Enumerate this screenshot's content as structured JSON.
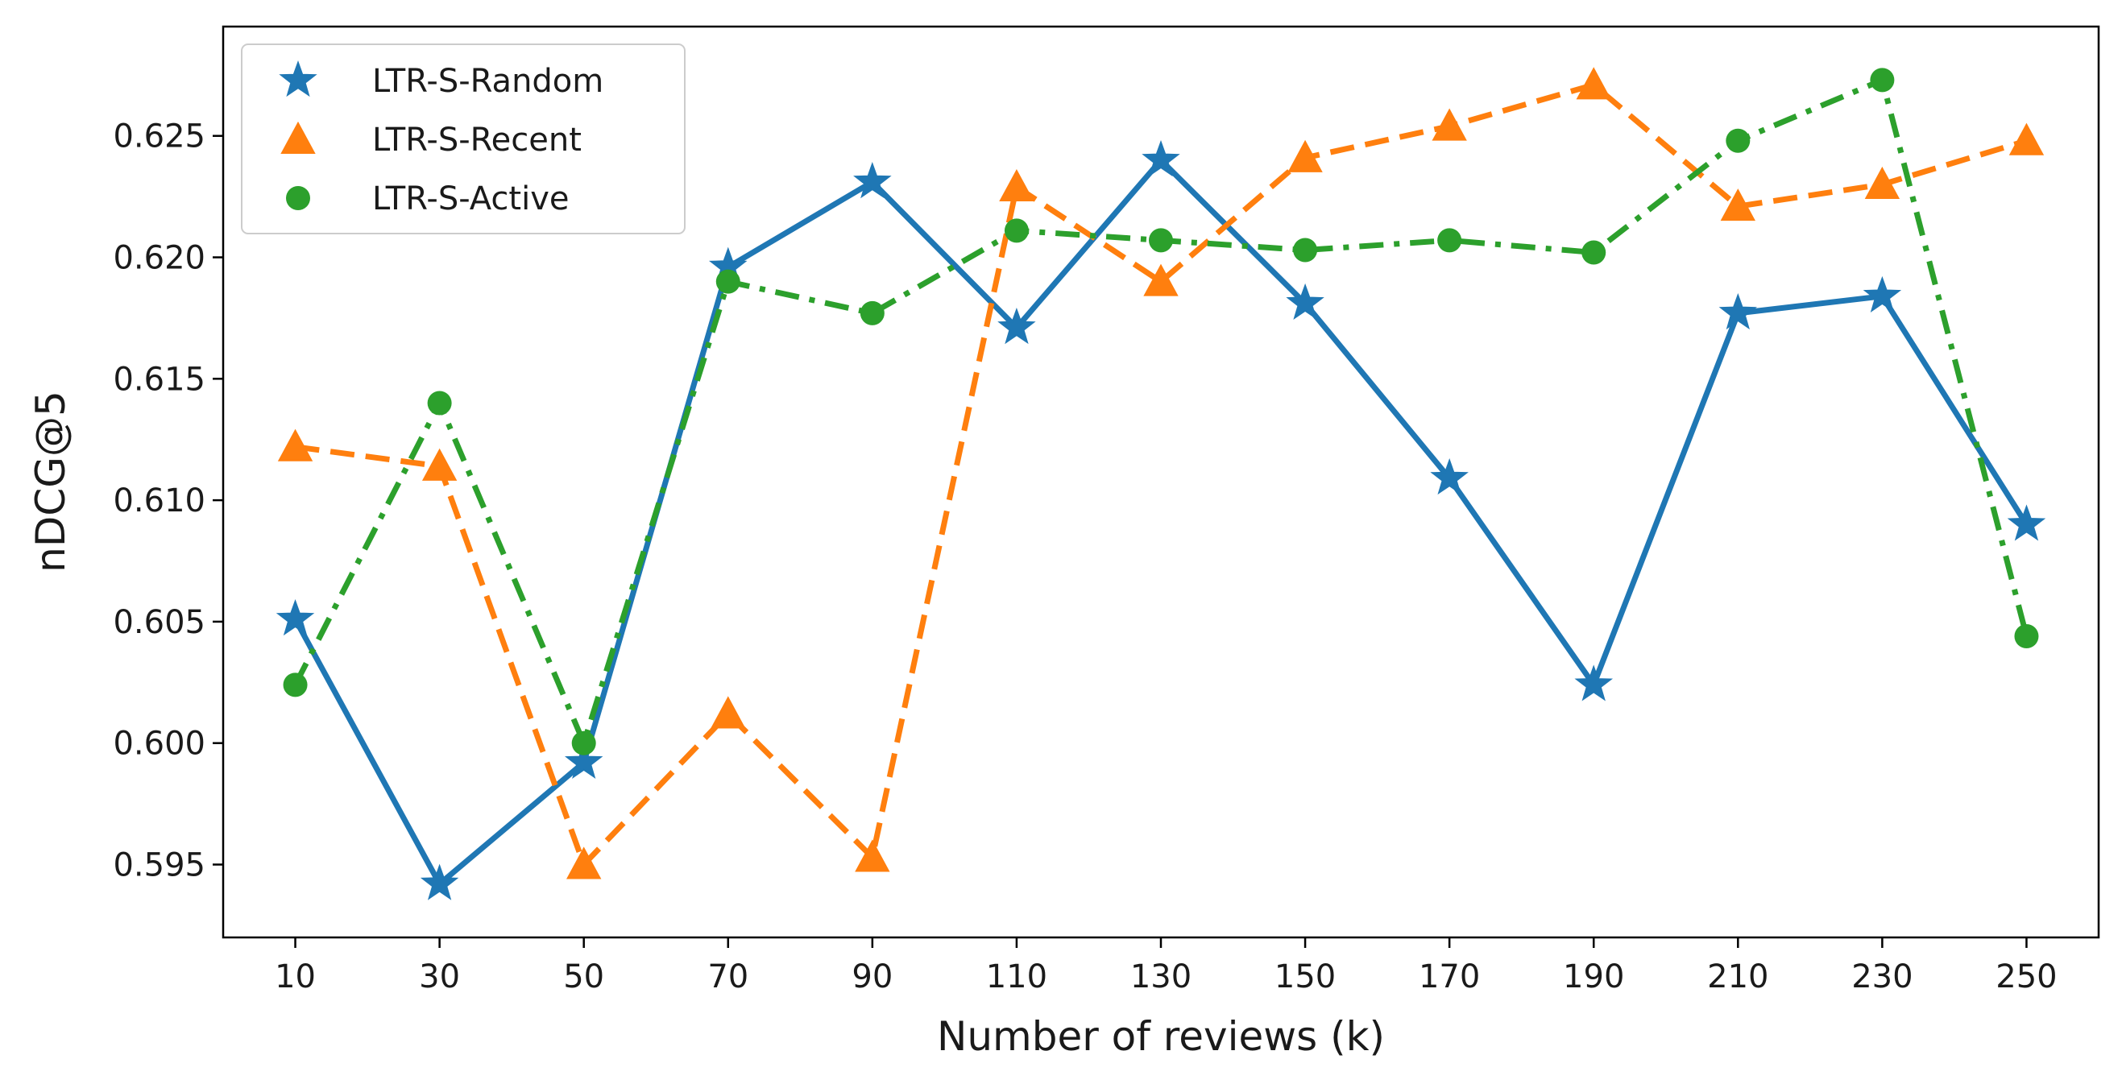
{
  "chart_data": {
    "type": "line",
    "title": "",
    "xlabel": "Number of reviews (k)",
    "ylabel": "nDCG@5",
    "categories": [
      "10",
      "30",
      "50",
      "70",
      "90",
      "110",
      "130",
      "150",
      "170",
      "190",
      "210",
      "230",
      "250"
    ],
    "x": [
      10,
      30,
      50,
      70,
      90,
      110,
      130,
      150,
      170,
      190,
      210,
      230,
      250
    ],
    "xlim": [
      0,
      260
    ],
    "ylim": [
      0.592,
      0.6295
    ],
    "yticks": [
      0.595,
      0.6,
      0.605,
      0.61,
      0.615,
      0.62,
      0.625
    ],
    "ytick_labels": [
      "0.595",
      "0.600",
      "0.605",
      "0.610",
      "0.615",
      "0.620",
      "0.625"
    ],
    "grid": false,
    "legend_position": "top-left",
    "series": [
      {
        "name": "LTR-S-Random",
        "color": "#1f77b4",
        "linestyle": "solid",
        "marker": "star",
        "values": [
          0.6051,
          0.5942,
          0.5992,
          0.6196,
          0.6231,
          0.6171,
          0.624,
          0.6181,
          0.6109,
          0.6024,
          0.6177,
          0.6184,
          0.609
        ]
      },
      {
        "name": "LTR-S-Recent",
        "color": "#ff7f0e",
        "linestyle": "dashed",
        "marker": "triangle",
        "values": [
          0.6122,
          0.6114,
          0.595,
          0.6012,
          0.5953,
          0.6229,
          0.619,
          0.6241,
          0.6254,
          0.6271,
          0.6221,
          0.623,
          0.6248
        ]
      },
      {
        "name": "LTR-S-Active",
        "color": "#2ca02c",
        "linestyle": "dashdot",
        "marker": "circle",
        "values": [
          0.6024,
          0.614,
          0.6,
          0.619,
          0.6177,
          0.6211,
          0.6207,
          0.6203,
          0.6207,
          0.6202,
          0.6248,
          0.6273,
          0.6044
        ]
      }
    ]
  }
}
